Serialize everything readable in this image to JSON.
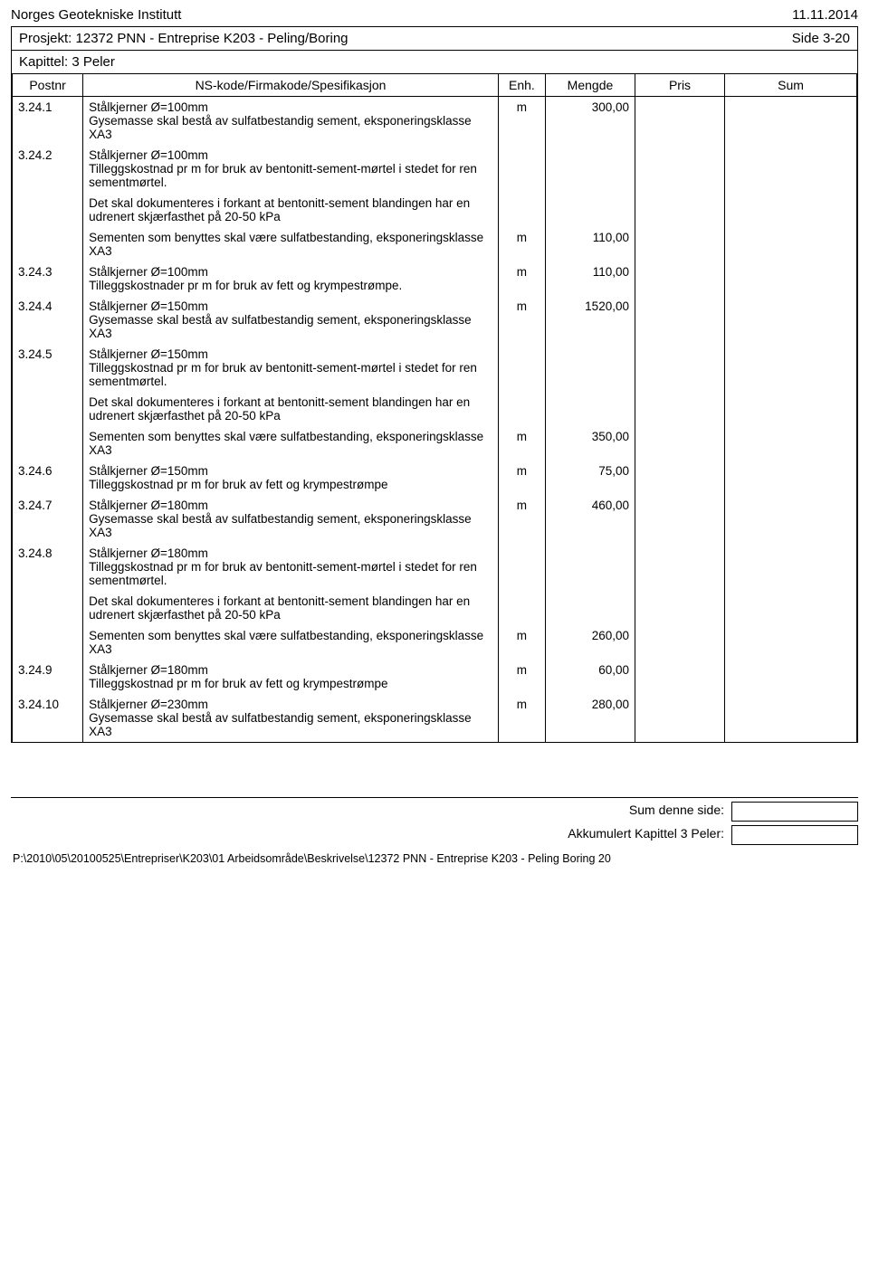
{
  "header": {
    "org": "Norges Geotekniske Institutt",
    "date": "11.11.2014",
    "project": "Prosjekt: 12372 PNN - Entreprise K203 - Peling/Boring",
    "page": "Side 3-20",
    "chapter": "Kapittel: 3 Peler"
  },
  "columns": {
    "postnr": "Postnr",
    "spec": "NS-kode/Firmakode/Spesifikasjon",
    "enh": "Enh.",
    "mengde": "Mengde",
    "pris": "Pris",
    "sum": "Sum"
  },
  "rows": [
    {
      "postnr": "3.24.1",
      "paras": [
        "Stålkjerner Ø=100mm",
        "Gysemasse skal  bestå av sulfatbestandig sement, eksponeringsklasse XA3"
      ],
      "enh": "m",
      "mengde": "300,00"
    },
    {
      "postnr": "3.24.2",
      "paras": [
        "Stålkjerner Ø=100mm",
        "Tilleggskostnad pr m for bruk av bentonitt-sement-mørtel i stedet for ren sementmørtel."
      ],
      "enh": "",
      "mengde": ""
    },
    {
      "postnr": "",
      "paras": [
        "Det skal dokumenteres i forkant at bentonitt-sement blandingen har en udrenert skjærfasthet på 20-50 kPa"
      ],
      "enh": "",
      "mengde": ""
    },
    {
      "postnr": "",
      "paras": [
        "Sementen som benyttes skal være sulfatbestanding, eksponeringsklasse XA3"
      ],
      "enh": "m",
      "mengde": "110,00"
    },
    {
      "postnr": "3.24.3",
      "paras": [
        "Stålkjerner Ø=100mm",
        "Tilleggskostnader pr m for bruk av fett og krympestrømpe."
      ],
      "enh": "m",
      "mengde": "110,00"
    },
    {
      "postnr": "3.24.4",
      "paras": [
        "Stålkjerner Ø=150mm",
        "Gysemasse skal  bestå av sulfatbestandig sement, eksponeringsklasse XA3"
      ],
      "enh": "m",
      "mengde": "1520,00"
    },
    {
      "postnr": "3.24.5",
      "paras": [
        "Stålkjerner Ø=150mm",
        "Tilleggskostnad pr m for bruk av bentonitt-sement-mørtel i stedet for ren sementmørtel."
      ],
      "enh": "",
      "mengde": ""
    },
    {
      "postnr": "",
      "paras": [
        "Det skal dokumenteres i forkant at bentonitt-sement blandingen har en udrenert skjærfasthet på 20-50 kPa"
      ],
      "enh": "",
      "mengde": ""
    },
    {
      "postnr": "",
      "paras": [
        "Sementen som benyttes skal være sulfatbestanding, eksponeringsklasse XA3"
      ],
      "enh": "m",
      "mengde": "350,00"
    },
    {
      "postnr": "3.24.6",
      "paras": [
        "Stålkjerner Ø=150mm",
        "Tilleggskostnad pr m for bruk av fett og krympestrømpe"
      ],
      "enh": "m",
      "mengde": "75,00"
    },
    {
      "postnr": "3.24.7",
      "paras": [
        "Stålkjerner Ø=180mm",
        "Gysemasse skal  bestå av sulfatbestandig sement, eksponeringsklasse XA3"
      ],
      "enh": "m",
      "mengde": "460,00"
    },
    {
      "postnr": "3.24.8",
      "paras": [
        "Stålkjerner Ø=180mm",
        "Tilleggskostnad pr m for bruk av bentonitt-sement-mørtel i stedet for ren sementmørtel."
      ],
      "enh": "",
      "mengde": ""
    },
    {
      "postnr": "",
      "paras": [
        "Det skal dokumenteres i forkant at bentonitt-sement blandingen har en udrenert skjærfasthet på 20-50 kPa"
      ],
      "enh": "",
      "mengde": ""
    },
    {
      "postnr": "",
      "paras": [
        "Sementen som benyttes skal være sulfatbestanding, eksponeringsklasse XA3"
      ],
      "enh": "m",
      "mengde": "260,00"
    },
    {
      "postnr": "3.24.9",
      "paras": [
        "Stålkjerner Ø=180mm",
        "Tilleggskostnad pr m for bruk av fett og krympestrømpe"
      ],
      "enh": "m",
      "mengde": "60,00"
    },
    {
      "postnr": "3.24.10",
      "paras": [
        "Stålkjerner Ø=230mm",
        "Gysemasse skal  bestå av sulfatbestandig sement, eksponeringsklasse XA3"
      ],
      "enh": "m",
      "mengde": "280,00"
    }
  ],
  "summary": {
    "this_page": "Sum denne side:",
    "accumulated": "Akkumulert Kapittel 3 Peler:"
  },
  "footer_path": "P:\\2010\\05\\20100525\\Entrepriser\\K203\\01 Arbeidsområde\\Beskrivelse\\12372 PNN - Entreprise K203 - Peling Boring 20"
}
